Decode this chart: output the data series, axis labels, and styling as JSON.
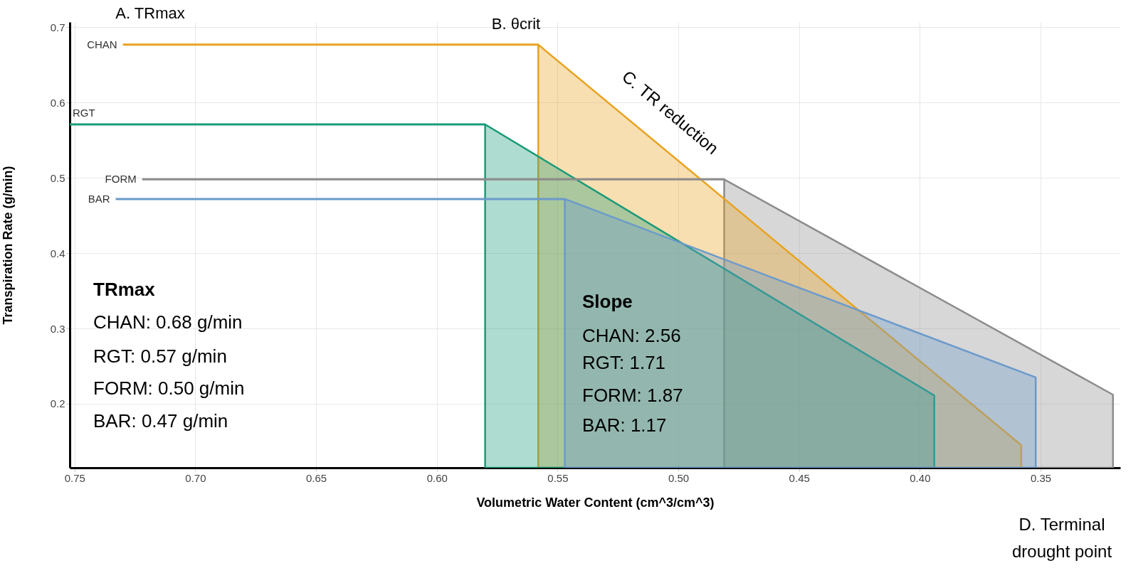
{
  "chart_data": {
    "type": "line",
    "xlabel": "Volumetric Water Content (cm^3/cm^3)",
    "ylabel": "Transpiration Rate (g/min)",
    "xlim": [
      0.752,
      0.317
    ],
    "ylim": [
      0.115,
      0.707
    ],
    "xticks": [
      0.75,
      {
        "value": 0.7,
        "label": "0.70"
      },
      0.65,
      {
        "value": 0.6,
        "label": "0.60"
      },
      0.55,
      {
        "value": 0.5,
        "label": "0.50"
      },
      0.45,
      {
        "value": 0.4,
        "label": "0.40"
      },
      0.35
    ],
    "yticks": [
      0.2,
      0.3,
      0.4,
      0.5,
      0.6,
      0.7
    ],
    "grid": true,
    "series": [
      {
        "type": "area",
        "color": "#8c8c8c",
        "x": [
          0.481,
          0.32
        ],
        "values": [
          0.498,
          0.212
        ]
      },
      {
        "type": "area",
        "color": "#e8a321",
        "x": [
          0.558,
          0.358
        ],
        "values": [
          0.677,
          0.145
        ]
      },
      {
        "type": "area",
        "color": "#1a9a78",
        "x": [
          0.58,
          0.394
        ],
        "values": [
          0.571,
          0.211
        ]
      },
      {
        "type": "area",
        "color": "#6b9acb",
        "x": [
          0.547,
          0.352
        ],
        "values": [
          0.472,
          0.235
        ]
      },
      {
        "name": "CHAN",
        "color": "#e8a321",
        "x": [
          0.73,
          0.558
        ],
        "values": [
          0.677,
          0.677
        ]
      },
      {
        "name": "RGT",
        "color": "#1a9a78",
        "x": [
          0.752,
          0.58
        ],
        "values": [
          0.571,
          0.571
        ]
      },
      {
        "name": "FORM",
        "color": "#8c8c8c",
        "x": [
          0.722,
          0.481
        ],
        "values": [
          0.498,
          0.498
        ]
      },
      {
        "name": "BAR",
        "color": "#6b9acb",
        "x": [
          0.733,
          0.547
        ],
        "values": [
          0.472,
          0.472
        ]
      }
    ],
    "annotations": [
      "A. TRmax",
      "B. θcrit",
      "C. TR reduction",
      "D. Terminal drought point",
      "TRmax",
      "CHAN:  0.68 g/min",
      "RGT:     0.57 g/min",
      "FORM: 0.50 g/min",
      "BAR:     0.47 g/min",
      "Slope",
      "CHAN:  2.56",
      "RGT:     1.71",
      "FORM: 1.87",
      "BAR:     1.17"
    ]
  }
}
